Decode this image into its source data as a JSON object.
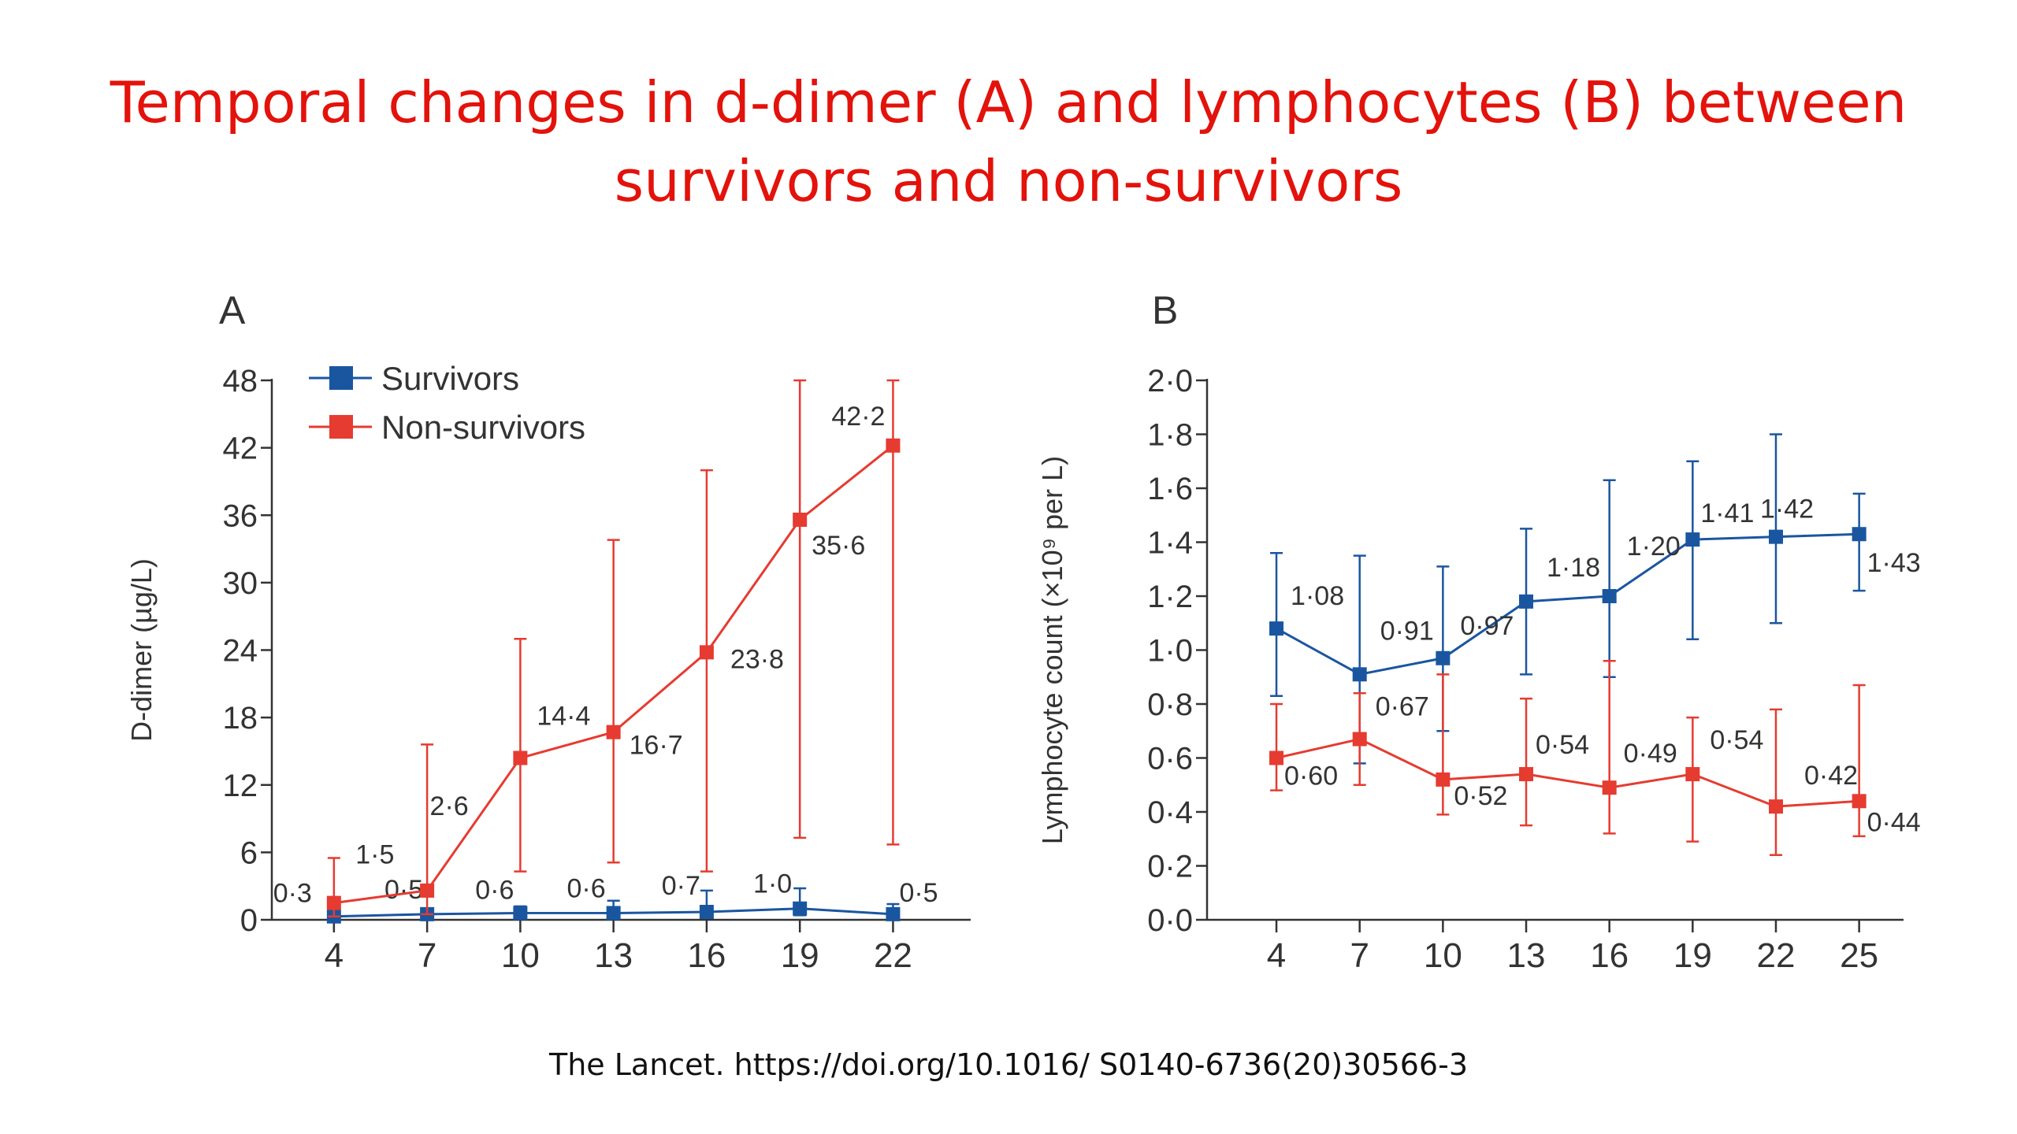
{
  "slide": {
    "title_line1": "Temporal changes in d-dimer (A) and lymphocytes (B) between",
    "title_line2": "survivors and non-survivors",
    "citation": "The Lancet. https://doi.org/10.1016/ S0140-6736(20)30566-3"
  },
  "colors": {
    "survivors": "#1a56a0",
    "non_survivors": "#e63b30",
    "title": "#e3120b",
    "axis": "#333333"
  },
  "chart_data": [
    {
      "type": "line",
      "panel": "A",
      "xlabel": "",
      "ylabel": "D-dimer (µg/L)",
      "x": [
        4,
        7,
        10,
        13,
        16,
        19,
        22
      ],
      "xticks": [
        "4",
        "7",
        "10",
        "13",
        "16",
        "19",
        "22"
      ],
      "ylim": [
        0,
        48
      ],
      "yticks": [
        "0",
        "6",
        "12",
        "18",
        "24",
        "30",
        "36",
        "42",
        "48"
      ],
      "legend": [
        "Survivors",
        "Non-survivors"
      ],
      "legend_position": "top-left",
      "grid": false,
      "series": [
        {
          "name": "Survivors",
          "color": "#1a56a0",
          "values": [
            0.3,
            0.5,
            0.6,
            0.6,
            0.7,
            1.0,
            0.5
          ],
          "labels": [
            "0·3",
            "0·5",
            "0·6",
            "0·6",
            "0·7",
            "1·0",
            "0·5"
          ],
          "error_low": [
            0.1,
            0.2,
            0.2,
            0.2,
            0.3,
            0.4,
            0.2
          ],
          "error_high": [
            0.6,
            0.9,
            1.2,
            1.7,
            2.6,
            2.8,
            1.4
          ]
        },
        {
          "name": "Non-survivors",
          "color": "#e63b30",
          "values": [
            1.5,
            2.6,
            14.4,
            16.7,
            23.8,
            35.6,
            42.2
          ],
          "labels": [
            "1·5",
            "2·6",
            "14·4",
            "16·7",
            "23·8",
            "35·6",
            "42·2"
          ],
          "error_low": [
            0.3,
            0.5,
            4.3,
            5.1,
            4.3,
            7.3,
            6.7
          ],
          "error_high": [
            5.5,
            15.6,
            25.0,
            33.8,
            40.0,
            48.0,
            48.0
          ]
        }
      ]
    },
    {
      "type": "line",
      "panel": "B",
      "xlabel": "",
      "ylabel": "Lymphocyte count (×10⁹ per L)",
      "x": [
        4,
        7,
        10,
        13,
        16,
        19,
        22,
        25
      ],
      "xticks": [
        "4",
        "7",
        "10",
        "13",
        "16",
        "19",
        "22",
        "25"
      ],
      "ylim": [
        0,
        2.0
      ],
      "yticks": [
        "0·0",
        "0·2",
        "0·4",
        "0·6",
        "0·8",
        "1·0",
        "1·2",
        "1·4",
        "1·6",
        "1·8",
        "2·0"
      ],
      "grid": false,
      "series": [
        {
          "name": "Survivors",
          "color": "#1a56a0",
          "values": [
            1.08,
            0.91,
            0.97,
            1.18,
            1.2,
            1.41,
            1.42,
            1.43
          ],
          "labels": [
            "1·08",
            "0·91",
            "0·97",
            "1·18",
            "1·20",
            "1·41",
            "1·42",
            "1·43"
          ],
          "error_low": [
            0.83,
            0.58,
            0.7,
            0.91,
            0.9,
            1.04,
            1.1,
            1.22
          ],
          "error_high": [
            1.36,
            1.35,
            1.31,
            1.45,
            1.63,
            1.7,
            1.8,
            1.58
          ]
        },
        {
          "name": "Non-survivors",
          "color": "#e63b30",
          "values": [
            0.6,
            0.67,
            0.52,
            0.54,
            0.49,
            0.54,
            0.42,
            0.44
          ],
          "labels": [
            "0·60",
            "0·67",
            "0·52",
            "0·54",
            "0·49",
            "0·54",
            "0·42",
            "0·44"
          ],
          "error_low": [
            0.48,
            0.5,
            0.39,
            0.35,
            0.32,
            0.29,
            0.24,
            0.31
          ],
          "error_high": [
            0.8,
            0.84,
            0.91,
            0.82,
            0.96,
            0.75,
            0.78,
            0.87
          ]
        }
      ]
    }
  ]
}
